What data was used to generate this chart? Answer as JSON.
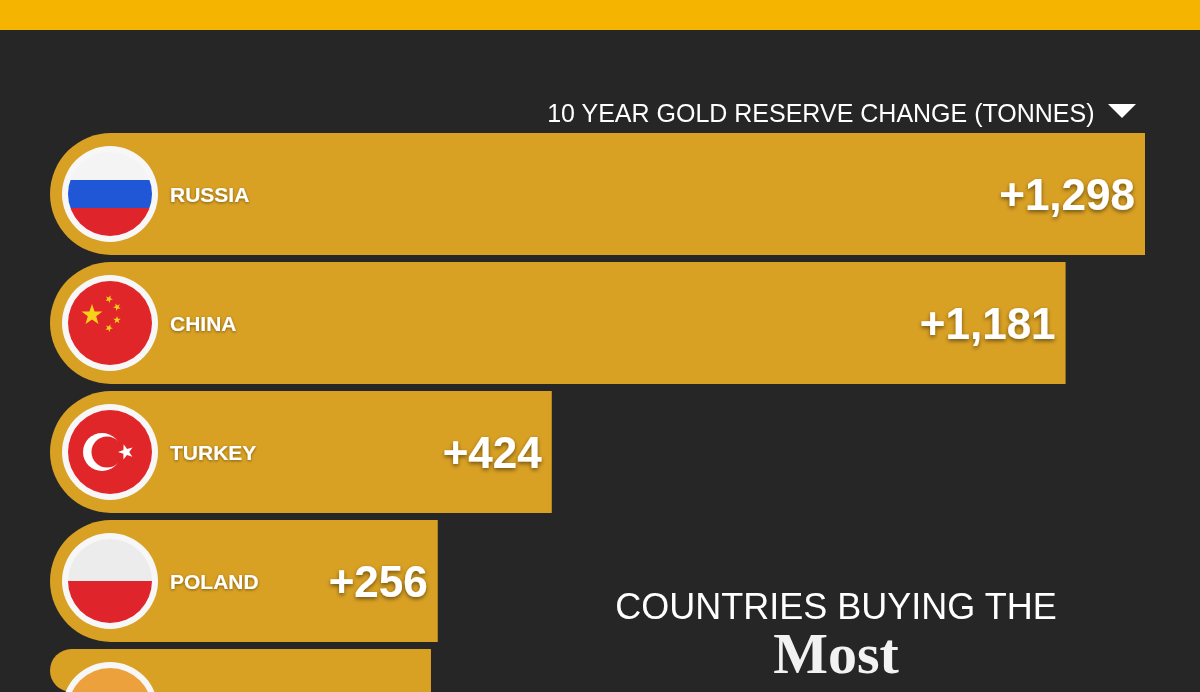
{
  "chart_data": {
    "type": "bar",
    "orientation": "horizontal",
    "title": "COUNTRIES BUYING THE",
    "subtitle": "Most",
    "xlabel": "10 YEAR GOLD RESERVE CHANGE (TONNES)",
    "categories": [
      "RUSSIA",
      "CHINA",
      "TURKEY",
      "POLAND",
      null
    ],
    "values": [
      1298,
      1181,
      424,
      256,
      246
    ],
    "value_labels": [
      "+1,298",
      "+1,181",
      "+424",
      "+256",
      null
    ],
    "color": "#d9a124",
    "tick_labels": "y"
  }
}
